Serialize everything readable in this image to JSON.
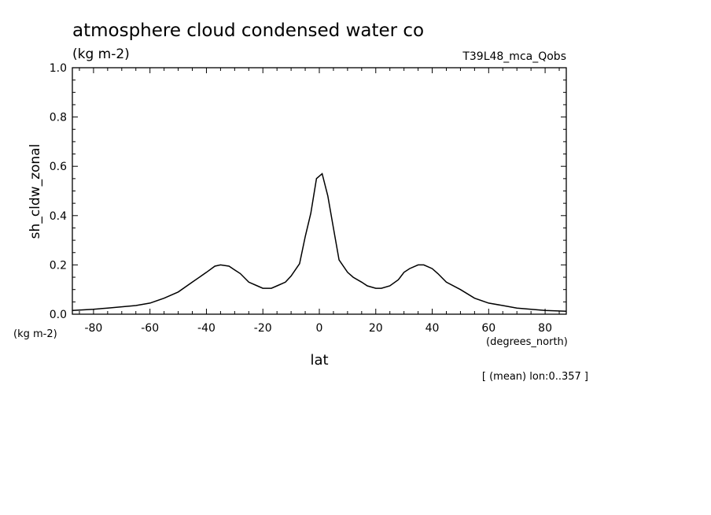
{
  "header": {
    "title": "atmosphere cloud condensed water co",
    "units": "(kg m-2)",
    "run_label": "T39L48_mca_Qobs"
  },
  "axes": {
    "y_units_corner": "(kg m-2)",
    "x_units": "(degrees_north)",
    "x_label": "lat",
    "y_label": "sh_cldw_zonal",
    "footnote": "[ (mean) lon:0..357 ]"
  },
  "chart_data": {
    "type": "line",
    "title": "atmosphere cloud condensed water co",
    "xlabel": "lat",
    "ylabel": "sh_cldw_zonal",
    "xlim": [
      -87.5,
      87.5
    ],
    "ylim": [
      0,
      1
    ],
    "x_ticks": [
      -80,
      -60,
      -40,
      -20,
      0,
      20,
      40,
      60,
      80
    ],
    "x_tick_labels": [
      "-80",
      "-60",
      "-40",
      "-20",
      "0",
      "20",
      "40",
      "60",
      "80"
    ],
    "y_ticks": [
      0,
      0.2,
      0.4,
      0.6,
      0.8,
      1.0
    ],
    "y_tick_labels": [
      "0.0",
      "0.2",
      "0.4",
      "0.6",
      "0.8",
      "1.0"
    ],
    "grid": false,
    "series": [
      {
        "x": [
          -87.5,
          -80,
          -75,
          -70,
          -65,
          -60,
          -55,
          -50,
          -45,
          -40,
          -37,
          -35,
          -32,
          -30,
          -28,
          -25,
          -22,
          -20,
          -17,
          -15,
          -12,
          -10,
          -7,
          -5,
          -3,
          -1,
          1,
          3,
          5,
          7,
          10,
          12,
          15,
          17,
          20,
          22,
          25,
          28,
          30,
          32,
          35,
          37,
          40,
          42,
          45,
          50,
          55,
          60,
          65,
          70,
          75,
          80,
          87.5
        ],
        "y": [
          0.015,
          0.02,
          0.025,
          0.03,
          0.035,
          0.045,
          0.065,
          0.09,
          0.13,
          0.17,
          0.195,
          0.2,
          0.195,
          0.18,
          0.165,
          0.13,
          0.115,
          0.105,
          0.105,
          0.115,
          0.13,
          0.155,
          0.205,
          0.315,
          0.41,
          0.55,
          0.57,
          0.48,
          0.35,
          0.22,
          0.17,
          0.15,
          0.13,
          0.115,
          0.105,
          0.105,
          0.115,
          0.14,
          0.17,
          0.185,
          0.2,
          0.2,
          0.185,
          0.165,
          0.13,
          0.1,
          0.065,
          0.045,
          0.035,
          0.025,
          0.02,
          0.015,
          0.012
        ]
      }
    ]
  }
}
